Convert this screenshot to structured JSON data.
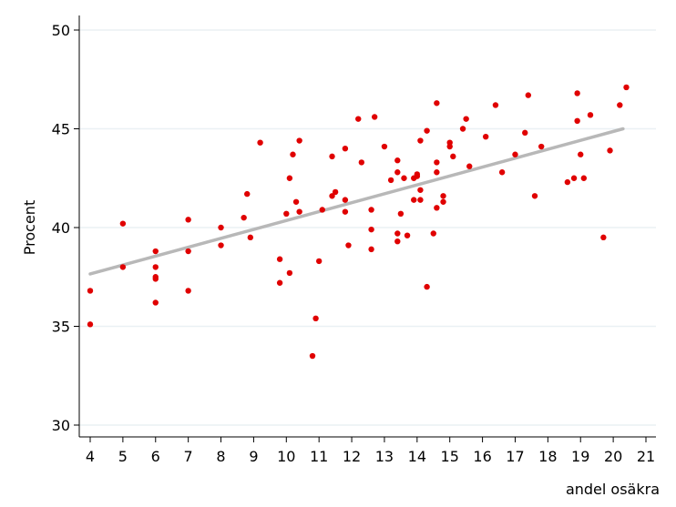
{
  "chart_data": {
    "type": "scatter",
    "title": "",
    "xlabel": "andel osäkra",
    "ylabel": "Procent",
    "xlim": [
      4,
      21
    ],
    "ylim": [
      30,
      50
    ],
    "grid": "horizontal",
    "xticks": [
      4,
      5,
      6,
      7,
      8,
      9,
      10,
      11,
      12,
      13,
      14,
      15,
      16,
      17,
      18,
      19,
      20,
      21
    ],
    "yticks": [
      30,
      35,
      40,
      45,
      50
    ],
    "colors": {
      "points": "#e00000",
      "fit_line": "#b8b8b8",
      "grid": "#eaf0f4",
      "axis": "#000000"
    },
    "series": [
      {
        "type": "scatter",
        "points": [
          [
            4.0,
            36.8
          ],
          [
            4.0,
            35.1
          ],
          [
            5.0,
            40.2
          ],
          [
            5.0,
            38.0
          ],
          [
            6.0,
            38.8
          ],
          [
            6.0,
            38.0
          ],
          [
            6.0,
            37.5
          ],
          [
            6.0,
            37.4
          ],
          [
            6.0,
            36.2
          ],
          [
            7.0,
            40.4
          ],
          [
            7.0,
            38.8
          ],
          [
            7.0,
            36.8
          ],
          [
            8.0,
            40.0
          ],
          [
            8.0,
            39.1
          ],
          [
            8.7,
            40.5
          ],
          [
            8.8,
            41.7
          ],
          [
            8.9,
            39.5
          ],
          [
            9.2,
            44.3
          ],
          [
            9.8,
            38.4
          ],
          [
            9.8,
            37.2
          ],
          [
            10.0,
            40.7
          ],
          [
            10.1,
            42.5
          ],
          [
            10.1,
            37.7
          ],
          [
            10.2,
            43.7
          ],
          [
            10.3,
            41.3
          ],
          [
            10.4,
            44.4
          ],
          [
            10.4,
            40.8
          ],
          [
            10.8,
            33.5
          ],
          [
            10.9,
            35.4
          ],
          [
            11.0,
            38.3
          ],
          [
            11.1,
            40.9
          ],
          [
            11.4,
            43.6
          ],
          [
            11.4,
            41.6
          ],
          [
            11.5,
            41.8
          ],
          [
            11.8,
            44.0
          ],
          [
            11.8,
            41.4
          ],
          [
            11.8,
            40.8
          ],
          [
            11.9,
            39.1
          ],
          [
            12.2,
            45.5
          ],
          [
            12.3,
            43.3
          ],
          [
            12.6,
            40.9
          ],
          [
            12.6,
            39.9
          ],
          [
            12.6,
            38.9
          ],
          [
            12.7,
            45.6
          ],
          [
            13.0,
            44.1
          ],
          [
            13.2,
            42.4
          ],
          [
            13.4,
            43.4
          ],
          [
            13.4,
            42.8
          ],
          [
            13.4,
            39.7
          ],
          [
            13.4,
            39.3
          ],
          [
            13.5,
            40.7
          ],
          [
            13.6,
            42.5
          ],
          [
            13.7,
            39.6
          ],
          [
            13.9,
            42.5
          ],
          [
            13.9,
            41.4
          ],
          [
            14.0,
            42.6
          ],
          [
            14.0,
            42.7
          ],
          [
            14.1,
            44.4
          ],
          [
            14.1,
            41.4
          ],
          [
            14.1,
            41.9
          ],
          [
            14.3,
            44.9
          ],
          [
            14.3,
            37.0
          ],
          [
            14.5,
            39.7
          ],
          [
            14.6,
            43.3
          ],
          [
            14.6,
            42.8
          ],
          [
            14.6,
            41.0
          ],
          [
            14.6,
            46.3
          ],
          [
            14.8,
            41.6
          ],
          [
            14.8,
            41.3
          ],
          [
            15.0,
            44.3
          ],
          [
            15.0,
            44.1
          ],
          [
            15.1,
            43.6
          ],
          [
            15.4,
            45.0
          ],
          [
            15.5,
            45.5
          ],
          [
            15.6,
            43.1
          ],
          [
            16.1,
            44.6
          ],
          [
            16.4,
            46.2
          ],
          [
            16.6,
            42.8
          ],
          [
            17.0,
            43.7
          ],
          [
            17.3,
            44.8
          ],
          [
            17.4,
            46.7
          ],
          [
            17.6,
            41.6
          ],
          [
            17.8,
            44.1
          ],
          [
            18.6,
            42.3
          ],
          [
            18.8,
            42.5
          ],
          [
            18.9,
            46.8
          ],
          [
            18.9,
            45.4
          ],
          [
            19.0,
            43.7
          ],
          [
            19.1,
            42.5
          ],
          [
            19.3,
            45.7
          ],
          [
            19.7,
            39.5
          ],
          [
            19.9,
            43.9
          ],
          [
            20.2,
            46.2
          ],
          [
            20.4,
            47.1
          ]
        ]
      },
      {
        "type": "line",
        "x": [
          4.0,
          20.3
        ],
        "y": [
          37.65,
          45.0
        ]
      }
    ]
  }
}
